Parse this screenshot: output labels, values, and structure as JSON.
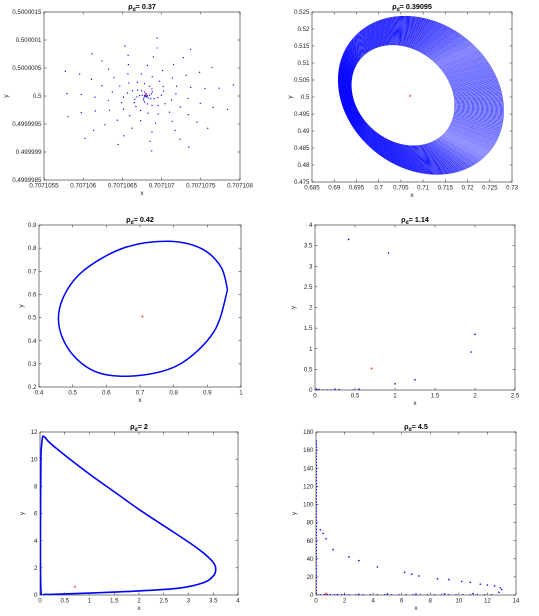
{
  "chart_data": [
    {
      "type": "scatter",
      "title_prefix": "ρ",
      "title_sub": "d",
      "title_value": "= 0.37",
      "xlabel": "x",
      "ylabel": "y",
      "xlim": [
        0.7071055,
        0.707108
      ],
      "ylim": [
        0.4999985,
        0.5000015
      ],
      "xticks": [
        "0.7071055",
        "0.707106",
        "0.7071065",
        "0.707107",
        "0.7071075",
        "0.707108"
      ],
      "yticks": [
        "0.4999985",
        "0.499999",
        "0.4999995",
        "0.5",
        "0.5000005",
        "0.500001",
        "0.5000015"
      ],
      "equilibrium": [
        0.7071068,
        0.5
      ],
      "shape": {
        "kind": "spiral",
        "cx": 0.7071068,
        "cy": 0.5,
        "rx": 1.2e-06,
        "ry": 1.1e-06,
        "arms": 5,
        "points_per_arm": 24
      }
    },
    {
      "type": "scatter",
      "title_prefix": "ρ",
      "title_sub": "d",
      "title_value": "= 0.39095",
      "xlabel": "x",
      "ylabel": "y",
      "xlim": [
        0.685,
        0.73
      ],
      "ylim": [
        0.475,
        0.525
      ],
      "xticks": [
        "0.685",
        "0.69",
        "0.695",
        "0.7",
        "0.705",
        "0.71",
        "0.715",
        "0.72",
        "0.725",
        "0.73"
      ],
      "yticks": [
        "0.475",
        "0.48",
        "0.485",
        "0.49",
        "0.495",
        "0.5",
        "0.505",
        "0.51",
        "0.515",
        "0.52",
        "0.525"
      ],
      "equilibrium": [
        0.7071,
        0.5
      ],
      "shape": {
        "kind": "band",
        "cx": 0.7075,
        "cy": 0.5005,
        "rx_in": 0.0125,
        "ry_in": 0.015,
        "rx_out": 0.02,
        "ry_out": 0.0235,
        "tilt": 0.5
      }
    },
    {
      "type": "line",
      "title_prefix": "ρ",
      "title_sub": "d",
      "title_value": "= 0.42",
      "xlabel": "x",
      "ylabel": "y",
      "xlim": [
        0.4,
        1
      ],
      "ylim": [
        0.2,
        0.9
      ],
      "xticks": [
        "0.4",
        "0.5",
        "0.6",
        "0.7",
        "0.8",
        "0.9",
        "1"
      ],
      "yticks": [
        "0.2",
        "0.3",
        "0.4",
        "0.5",
        "0.6",
        "0.7",
        "0.8",
        "0.9"
      ],
      "equilibrium": [
        0.7071,
        0.5
      ],
      "shape": {
        "kind": "cycle",
        "x": [
          0.96,
          0.94,
          0.88,
          0.78,
          0.65,
          0.53,
          0.47,
          0.46,
          0.5,
          0.58,
          0.7,
          0.82,
          0.92,
          0.96
        ],
        "y": [
          0.62,
          0.72,
          0.8,
          0.83,
          0.8,
          0.7,
          0.58,
          0.46,
          0.34,
          0.26,
          0.25,
          0.3,
          0.44,
          0.62
        ]
      }
    },
    {
      "type": "scatter",
      "title_prefix": "ρ",
      "title_sub": "d",
      "title_value": "= 1.14",
      "xlabel": "x",
      "ylabel": "y",
      "xlim": [
        0,
        2.5
      ],
      "ylim": [
        0,
        4
      ],
      "xticks": [
        "0",
        "0.5",
        "1",
        "1.5",
        "2",
        "2.5"
      ],
      "yticks": [
        "0",
        "0.5",
        "1",
        "1.5",
        "2",
        "2.5",
        "3",
        "3.5",
        "4"
      ],
      "equilibrium": [
        0.7071,
        0.5
      ],
      "points": {
        "x": [
          0.42,
          0.92,
          0.02,
          0.05,
          0.1,
          0.15,
          0.2,
          1.0,
          1.25,
          1.95,
          2.0,
          0.55,
          0.48,
          0.3,
          0.25
        ],
        "y": [
          3.65,
          3.32,
          0.02,
          0.01,
          0.0,
          0.0,
          0.0,
          0.15,
          0.25,
          0.92,
          1.35,
          0.02,
          0.0,
          0.01,
          0.02
        ]
      }
    },
    {
      "type": "line",
      "title_prefix": "ρ",
      "title_sub": "d",
      "title_value": "= 2",
      "xlabel": "x",
      "ylabel": "y",
      "xlim": [
        0,
        4
      ],
      "ylim": [
        0,
        12
      ],
      "xticks": [
        "0",
        "0.5",
        "1",
        "1.5",
        "2",
        "2.5",
        "3",
        "3.5",
        "4"
      ],
      "yticks": [
        "0",
        "2",
        "4",
        "6",
        "8",
        "10",
        "12"
      ],
      "equilibrium": [
        0.7071,
        0.5
      ],
      "shape": {
        "kind": "cycle",
        "x": [
          0.02,
          0.05,
          0.1,
          0.2,
          0.5,
          1.0,
          1.5,
          2.0,
          2.5,
          3.0,
          3.3,
          3.5,
          3.55,
          3.5,
          3.3,
          2.8,
          2.0,
          1.2,
          0.5,
          0.1,
          0.02,
          0.01,
          0.02
        ],
        "y": [
          10.5,
          11.6,
          11.6,
          11.2,
          10.3,
          8.9,
          7.6,
          6.3,
          5.1,
          3.9,
          3.1,
          2.4,
          1.9,
          1.4,
          0.9,
          0.5,
          0.3,
          0.17,
          0.08,
          0.05,
          0.3,
          5.0,
          10.5
        ]
      }
    },
    {
      "type": "scatter",
      "title_prefix": "ρ",
      "title_sub": "d",
      "title_value": "= 4.5",
      "xlabel": "x",
      "ylabel": "y",
      "xlim": [
        0,
        14
      ],
      "ylim": [
        0,
        180
      ],
      "xticks": [
        "0",
        "2",
        "4",
        "6",
        "8",
        "10",
        "12",
        "14"
      ],
      "yticks": [
        "0",
        "20",
        "40",
        "60",
        "80",
        "100",
        "120",
        "140",
        "160",
        "180"
      ],
      "equilibrium": [
        0.7071,
        0.5
      ],
      "points": {
        "x": [
          0.3,
          0.5,
          0.7,
          1.2,
          2.3,
          3.0,
          4.3,
          6.2,
          6.7,
          7.2,
          8.5,
          9.3,
          10.2,
          10.8,
          11.5,
          12.0,
          12.5,
          12.9,
          13.0,
          12.8,
          11.0,
          9.0,
          7.0,
          5.0,
          3.0,
          2.0,
          1.5,
          1.0,
          0.8,
          0.6
        ],
        "y": [
          72,
          68,
          62,
          50,
          42,
          38,
          31,
          25,
          23,
          21,
          18,
          17,
          15,
          14,
          12,
          11,
          10,
          8,
          6,
          3,
          1.5,
          1.2,
          1.0,
          1.0,
          0.8,
          0.6,
          0.5,
          0.4,
          0.3,
          0.3
        ]
      },
      "axis_points": {
        "x_at": 0.02,
        "y_from": 2,
        "y_to": 170
      }
    }
  ],
  "colors": {
    "trajectory": "#0000ff",
    "equilibrium": "#ff0000",
    "axes": "#262626"
  }
}
